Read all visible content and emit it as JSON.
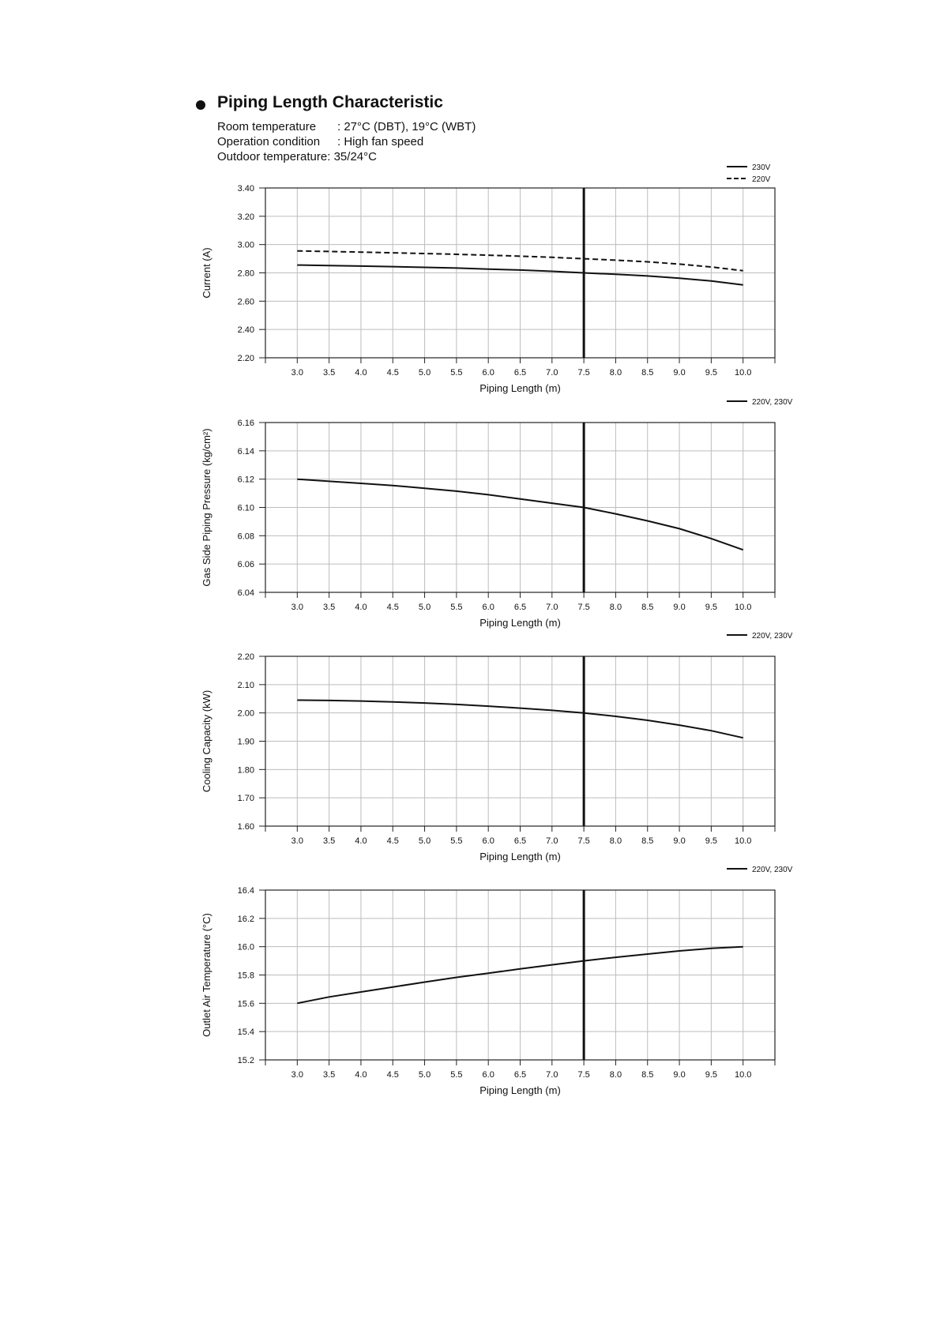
{
  "header": {
    "title": "Piping Length Characteristic",
    "conditions": [
      {
        "label": "Room temperature",
        "value": ": 27°C (DBT), 19°C (WBT)"
      },
      {
        "label": "Operation condition",
        "value": ": High fan speed"
      },
      {
        "label": "Outdoor temperature:",
        "value": "35/24°C"
      }
    ]
  },
  "chart_data": [
    {
      "type": "line",
      "ylabel": "Current (A)",
      "xlabel": "Piping Length (m)",
      "xlim": [
        2.5,
        10.5
      ],
      "ylim": [
        2.2,
        3.4
      ],
      "ystep": 0.2,
      "ydecimals": 2,
      "xticks": [
        "3.0",
        "3.5",
        "4.0",
        "4.5",
        "5.0",
        "5.5",
        "6.0",
        "6.5",
        "7.0",
        "7.5",
        "8.0",
        "8.5",
        "9.0",
        "9.5",
        "10.0"
      ],
      "yticks": [
        "2.20",
        "2.40",
        "2.60",
        "2.80",
        "3.00",
        "3.20",
        "3.40"
      ],
      "grid": true,
      "marker_x": 7.5,
      "legend_position": "top-right",
      "series": [
        {
          "name": "230V",
          "style": "solid",
          "x": [
            3.0,
            3.5,
            4.0,
            4.5,
            5.0,
            5.5,
            6.0,
            6.5,
            7.0,
            7.5,
            8.0,
            8.5,
            9.0,
            9.5,
            10.0
          ],
          "y": [
            2.855,
            2.852,
            2.848,
            2.844,
            2.839,
            2.834,
            2.827,
            2.82,
            2.811,
            2.8,
            2.79,
            2.778,
            2.762,
            2.743,
            2.715
          ]
        },
        {
          "name": "220V",
          "style": "dashed",
          "x": [
            3.0,
            3.5,
            4.0,
            4.5,
            5.0,
            5.5,
            6.0,
            6.5,
            7.0,
            7.5,
            8.0,
            8.5,
            9.0,
            9.5,
            10.0
          ],
          "y": [
            2.955,
            2.951,
            2.947,
            2.942,
            2.937,
            2.931,
            2.925,
            2.918,
            2.91,
            2.9,
            2.89,
            2.878,
            2.862,
            2.842,
            2.815
          ]
        }
      ]
    },
    {
      "type": "line",
      "ylabel": "Gas Side Piping Pressure (kg/cm²)",
      "xlabel": "Piping Length (m)",
      "xlim": [
        2.5,
        10.5
      ],
      "ylim": [
        6.04,
        6.16
      ],
      "ystep": 0.02,
      "ydecimals": 2,
      "xticks": [
        "3.0",
        "3.5",
        "4.0",
        "4.5",
        "5.0",
        "5.5",
        "6.0",
        "6.5",
        "7.0",
        "7.5",
        "8.0",
        "8.5",
        "9.0",
        "9.5",
        "10.0"
      ],
      "yticks": [
        "6.04",
        "6.06",
        "6.08",
        "6.10",
        "6.12",
        "6.14",
        "6.16"
      ],
      "grid": true,
      "marker_x": 7.5,
      "legend_position": "top-right",
      "series": [
        {
          "name": "220V, 230V",
          "style": "solid",
          "x": [
            3.0,
            3.5,
            4.0,
            4.5,
            5.0,
            5.5,
            6.0,
            6.5,
            7.0,
            7.5,
            8.0,
            8.5,
            9.0,
            9.5,
            10.0
          ],
          "y": [
            6.12,
            6.1185,
            6.117,
            6.1155,
            6.1135,
            6.1115,
            6.109,
            6.106,
            6.103,
            6.1,
            6.0955,
            6.0905,
            6.085,
            6.078,
            6.07
          ]
        }
      ]
    },
    {
      "type": "line",
      "ylabel": "Cooling Capacity (kW)",
      "xlabel": "Piping Length (m)",
      "xlim": [
        2.5,
        10.5
      ],
      "ylim": [
        1.6,
        2.2
      ],
      "ystep": 0.1,
      "ydecimals": 2,
      "xticks": [
        "3.0",
        "3.5",
        "4.0",
        "4.5",
        "5.0",
        "5.5",
        "6.0",
        "6.5",
        "7.0",
        "7.5",
        "8.0",
        "8.5",
        "9.0",
        "9.5",
        "10.0"
      ],
      "yticks": [
        "1.60",
        "1.70",
        "1.80",
        "1.90",
        "2.00",
        "2.10",
        "2.20"
      ],
      "grid": true,
      "marker_x": 7.5,
      "legend_position": "top-right",
      "series": [
        {
          "name": "220V, 230V",
          "style": "solid",
          "x": [
            3.0,
            3.5,
            4.0,
            4.5,
            5.0,
            5.5,
            6.0,
            6.5,
            7.0,
            7.5,
            8.0,
            8.5,
            9.0,
            9.5,
            10.0
          ],
          "y": [
            2.045,
            2.044,
            2.042,
            2.039,
            2.035,
            2.03,
            2.024,
            2.017,
            2.009,
            2.0,
            1.988,
            1.974,
            1.957,
            1.937,
            1.912
          ]
        }
      ]
    },
    {
      "type": "line",
      "ylabel": "Outlet Air Temperature (°C)",
      "xlabel": "Piping Length (m)",
      "xlim": [
        2.5,
        10.5
      ],
      "ylim": [
        15.2,
        16.4
      ],
      "ystep": 0.2,
      "ydecimals": 1,
      "xticks": [
        "3.0",
        "3.5",
        "4.0",
        "4.5",
        "5.0",
        "5.5",
        "6.0",
        "6.5",
        "7.0",
        "7.5",
        "8.0",
        "8.5",
        "9.0",
        "9.5",
        "10.0"
      ],
      "yticks": [
        "15.2",
        "15.4",
        "15.6",
        "15.8",
        "16.0",
        "16.2",
        "16.4"
      ],
      "grid": true,
      "marker_x": 7.5,
      "legend_position": "top-right",
      "series": [
        {
          "name": "220V, 230V",
          "style": "solid",
          "x": [
            3.0,
            3.5,
            4.0,
            4.5,
            5.0,
            5.5,
            6.0,
            6.5,
            7.0,
            7.5,
            8.0,
            8.5,
            9.0,
            9.5,
            10.0
          ],
          "y": [
            15.6,
            15.645,
            15.68,
            15.715,
            15.75,
            15.783,
            15.813,
            15.843,
            15.872,
            15.9,
            15.925,
            15.948,
            15.97,
            15.988,
            16.0
          ]
        }
      ]
    }
  ]
}
